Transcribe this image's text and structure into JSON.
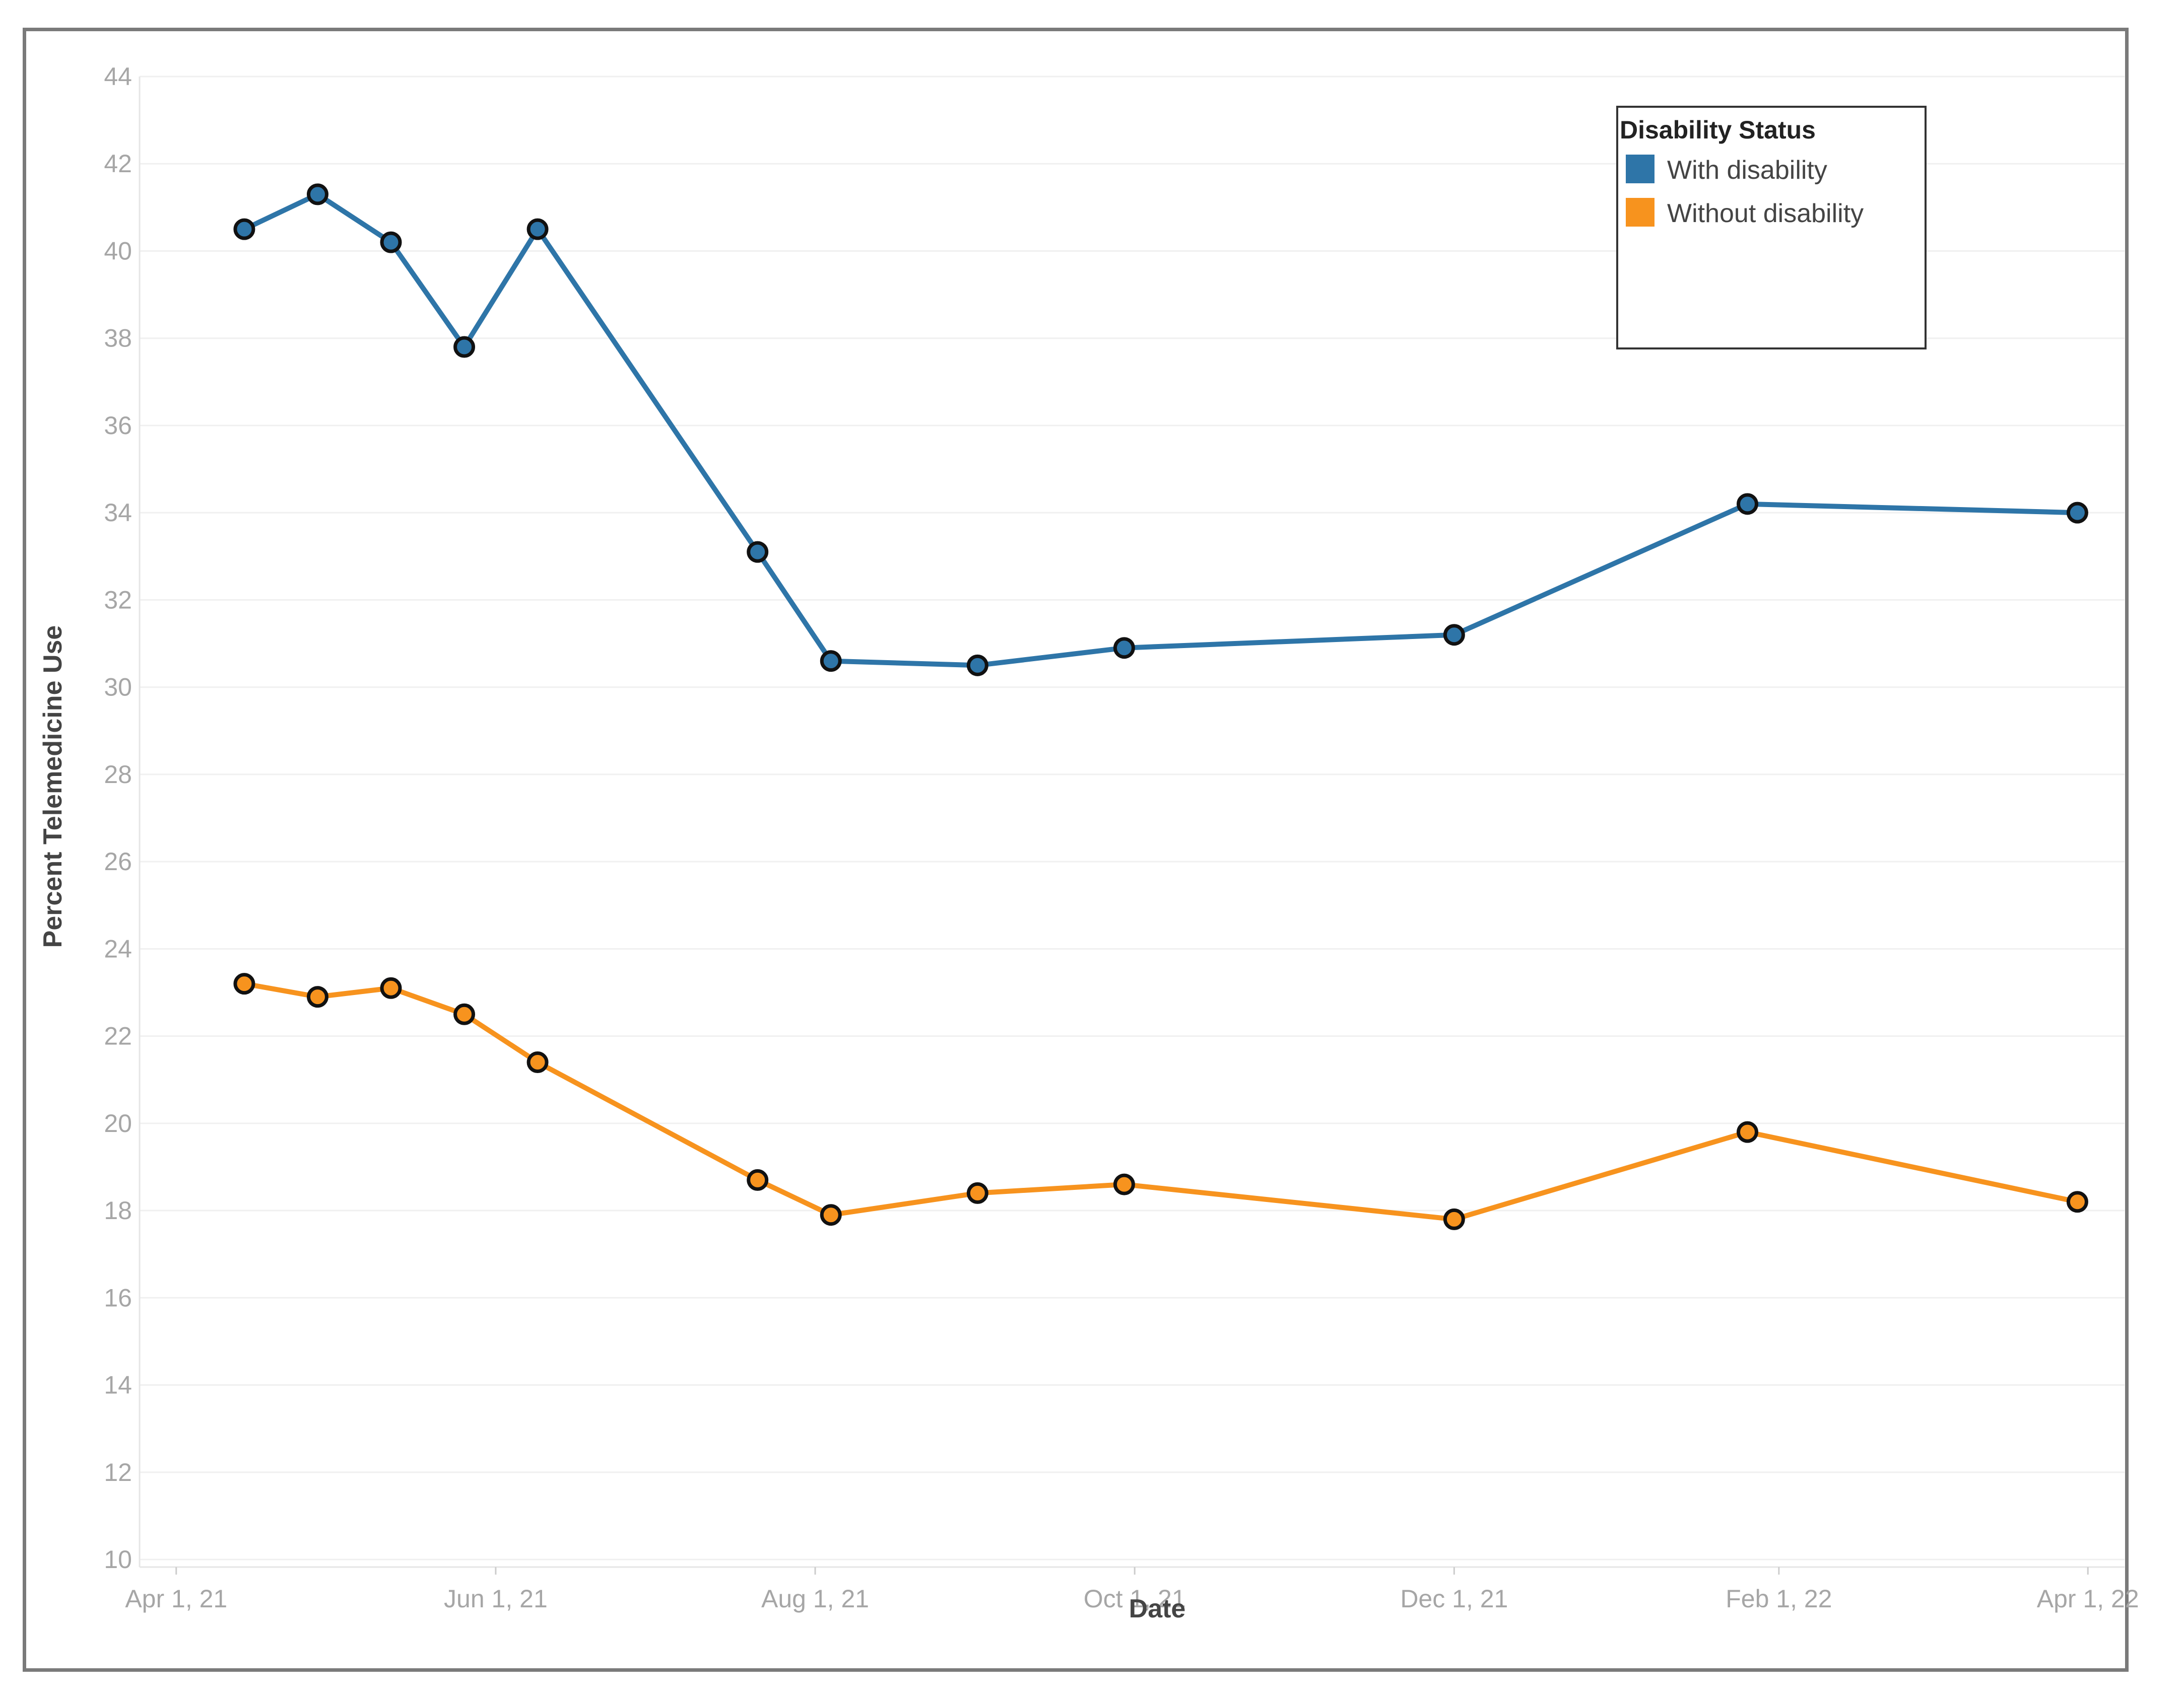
{
  "chart_data": {
    "type": "line",
    "title": "",
    "xlabel": "Date",
    "ylabel": "Percent Telemedicine Use",
    "ylim": [
      10,
      44
    ],
    "yticks": [
      10,
      12,
      14,
      16,
      18,
      20,
      22,
      24,
      26,
      28,
      30,
      32,
      34,
      36,
      38,
      40,
      42,
      44
    ],
    "xlim": [
      "2021-03-25",
      "2022-04-08"
    ],
    "xticks": [
      {
        "date": "2021-04-01",
        "label": "Apr 1, 21"
      },
      {
        "date": "2021-06-01",
        "label": "Jun 1, 21"
      },
      {
        "date": "2021-08-01",
        "label": "Aug 1, 21"
      },
      {
        "date": "2021-10-01",
        "label": "Oct 1, 21"
      },
      {
        "date": "2021-12-01",
        "label": "Dec 1, 21"
      },
      {
        "date": "2022-02-01",
        "label": "Feb 1, 22"
      },
      {
        "date": "2022-04-01",
        "label": "Apr 1, 22"
      }
    ],
    "x": [
      "2021-04-14",
      "2021-04-28",
      "2021-05-12",
      "2021-05-26",
      "2021-06-09",
      "2021-07-21",
      "2021-08-04",
      "2021-09-01",
      "2021-09-29",
      "2021-12-01",
      "2022-01-26",
      "2022-03-30"
    ],
    "legend_title": "Disability Status",
    "legend_position": "top-right",
    "grid": true,
    "series": [
      {
        "name": "With disability",
        "color": "#2e75a8",
        "values": [
          40.5,
          41.3,
          40.2,
          37.8,
          40.5,
          33.1,
          30.6,
          30.5,
          30.9,
          31.2,
          34.2,
          34.0
        ]
      },
      {
        "name": "Without disability",
        "color": "#f7931e",
        "values": [
          23.2,
          22.9,
          23.1,
          22.5,
          21.4,
          18.7,
          17.9,
          18.4,
          18.6,
          17.8,
          19.8,
          18.2
        ]
      }
    ]
  }
}
